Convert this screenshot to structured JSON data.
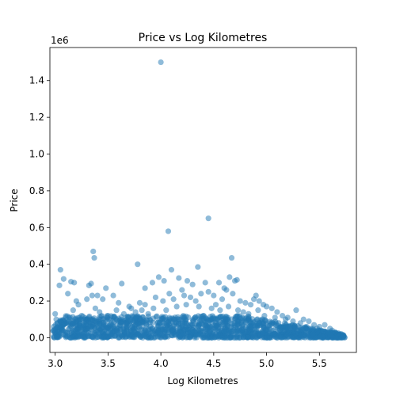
{
  "chart_data": {
    "type": "scatter",
    "title": "Price vs Log Kilometres",
    "xlabel": "Log Kilometres",
    "ylabel": "Price",
    "y_offset_label": "1e6",
    "xlim": [
      2.95,
      5.85
    ],
    "ylim": [
      -80000,
      1580000
    ],
    "x_ticks": [
      3.0,
      3.5,
      4.0,
      4.5,
      5.0,
      5.5
    ],
    "x_tick_labels": [
      "3.0",
      "3.5",
      "4.0",
      "4.5",
      "5.0",
      "5.5"
    ],
    "y_ticks": [
      0,
      200000,
      400000,
      600000,
      800000,
      1000000,
      1200000,
      1400000
    ],
    "y_tick_labels": [
      "0.0",
      "0.2",
      "0.4",
      "0.6",
      "0.8",
      "1.0",
      "1.2",
      "1.4"
    ],
    "grid": false,
    "marker_color": "#1f77b4",
    "marker_alpha": 0.5,
    "series": [
      {
        "points": [
          [
            4.0,
            1500000
          ],
          [
            4.45,
            650000
          ],
          [
            4.07,
            580000
          ],
          [
            3.36,
            470000
          ],
          [
            3.37,
            435000
          ],
          [
            4.67,
            435000
          ],
          [
            3.05,
            370000
          ],
          [
            3.78,
            400000
          ],
          [
            4.1,
            370000
          ],
          [
            4.35,
            385000
          ],
          [
            3.08,
            320000
          ],
          [
            3.15,
            305000
          ],
          [
            3.18,
            300000
          ],
          [
            3.32,
            285000
          ],
          [
            3.34,
            295000
          ],
          [
            3.48,
            270000
          ],
          [
            3.63,
            295000
          ],
          [
            3.85,
            270000
          ],
          [
            3.92,
            300000
          ],
          [
            3.98,
            330000
          ],
          [
            4.03,
            310000
          ],
          [
            4.17,
            325000
          ],
          [
            4.25,
            310000
          ],
          [
            4.3,
            290000
          ],
          [
            4.42,
            300000
          ],
          [
            4.55,
            300000
          ],
          [
            4.6,
            270000
          ],
          [
            4.65,
            330000
          ],
          [
            4.7,
            310000
          ],
          [
            4.72,
            315000
          ],
          [
            3.04,
            285000
          ],
          [
            3.12,
            240000
          ],
          [
            3.2,
            200000
          ],
          [
            3.22,
            180000
          ],
          [
            3.3,
            210000
          ],
          [
            3.35,
            230000
          ],
          [
            3.4,
            230000
          ],
          [
            3.45,
            210000
          ],
          [
            3.55,
            230000
          ],
          [
            3.6,
            190000
          ],
          [
            3.7,
            170000
          ],
          [
            3.8,
            190000
          ],
          [
            3.85,
            180000
          ],
          [
            3.95,
            220000
          ],
          [
            4.02,
            200000
          ],
          [
            4.08,
            240000
          ],
          [
            4.12,
            210000
          ],
          [
            4.2,
            260000
          ],
          [
            4.22,
            230000
          ],
          [
            4.28,
            220000
          ],
          [
            4.33,
            200000
          ],
          [
            4.38,
            240000
          ],
          [
            4.45,
            250000
          ],
          [
            4.5,
            230000
          ],
          [
            4.58,
            210000
          ],
          [
            4.62,
            260000
          ],
          [
            4.68,
            240000
          ],
          [
            4.75,
            200000
          ],
          [
            4.8,
            190000
          ],
          [
            4.85,
            180000
          ],
          [
            4.88,
            210000
          ],
          [
            4.9,
            230000
          ],
          [
            4.93,
            200000
          ],
          [
            4.97,
            180000
          ],
          [
            5.0,
            170000
          ],
          [
            5.05,
            160000
          ],
          [
            5.1,
            140000
          ],
          [
            5.15,
            120000
          ],
          [
            5.2,
            110000
          ],
          [
            5.28,
            150000
          ],
          [
            5.35,
            100000
          ],
          [
            5.4,
            90000
          ],
          [
            5.45,
            70000
          ],
          [
            5.5,
            60000
          ],
          [
            5.55,
            70000
          ],
          [
            5.6,
            50000
          ],
          [
            5.65,
            30000
          ],
          [
            5.7,
            20000
          ],
          [
            3.0,
            130000
          ],
          [
            3.01,
            100000
          ],
          [
            3.02,
            80000
          ],
          [
            3.03,
            60000
          ],
          [
            3.05,
            50000
          ],
          [
            3.07,
            40000
          ],
          [
            3.1,
            110000
          ],
          [
            3.13,
            90000
          ],
          [
            3.17,
            150000
          ],
          [
            3.25,
            120000
          ],
          [
            3.28,
            100000
          ],
          [
            3.38,
            160000
          ],
          [
            3.42,
            140000
          ],
          [
            3.5,
            120000
          ],
          [
            3.58,
            150000
          ],
          [
            3.65,
            130000
          ],
          [
            3.72,
            160000
          ],
          [
            3.76,
            140000
          ],
          [
            3.82,
            150000
          ],
          [
            3.88,
            130000
          ],
          [
            3.93,
            160000
          ],
          [
            4.05,
            150000
          ],
          [
            4.15,
            170000
          ],
          [
            4.24,
            180000
          ],
          [
            4.36,
            170000
          ],
          [
            4.48,
            160000
          ],
          [
            4.52,
            180000
          ],
          [
            4.56,
            150000
          ],
          [
            4.64,
            170000
          ],
          [
            4.73,
            150000
          ],
          [
            4.78,
            140000
          ],
          [
            4.83,
            130000
          ],
          [
            4.92,
            150000
          ],
          [
            4.98,
            120000
          ],
          [
            5.08,
            110000
          ],
          [
            5.18,
            100000
          ],
          [
            5.25,
            90000
          ],
          [
            5.32,
            80000
          ],
          [
            5.38,
            60000
          ],
          [
            5.48,
            50000
          ],
          [
            5.52,
            40000
          ],
          [
            5.58,
            30000
          ],
          [
            5.62,
            40000
          ],
          [
            5.68,
            25000
          ],
          [
            5.72,
            15000
          ],
          [
            5.73,
            10000
          ]
        ]
      }
    ],
    "dense_band": {
      "x_range": [
        2.98,
        5.74
      ],
      "y_low": 0,
      "y_high": 120000,
      "count": 1600
    }
  }
}
